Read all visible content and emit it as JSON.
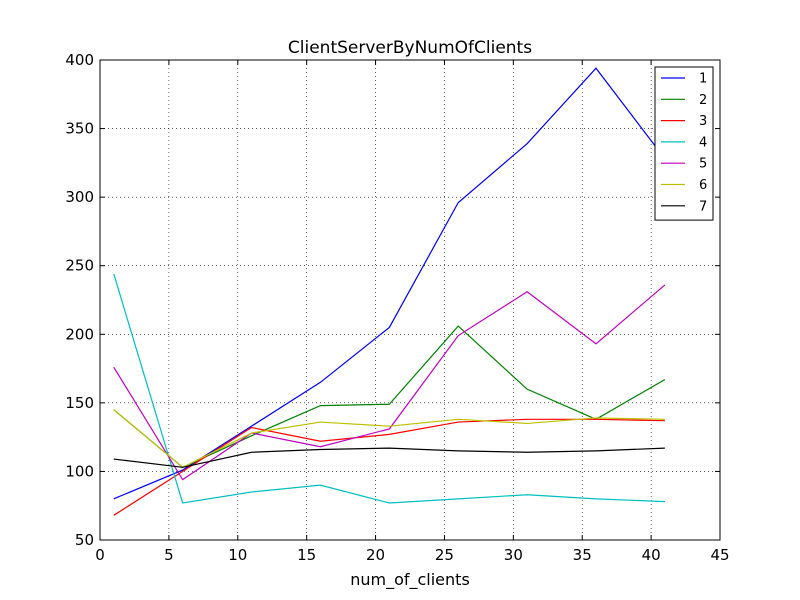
{
  "chart_data": {
    "type": "line",
    "title": "ClientServerByNumOfClients",
    "xlabel": "num_of_clients",
    "ylabel": "",
    "xlim": [
      0,
      45
    ],
    "ylim": [
      50,
      400
    ],
    "xticks": [
      0,
      5,
      10,
      15,
      20,
      25,
      30,
      35,
      40,
      45
    ],
    "yticks": [
      50,
      100,
      150,
      200,
      250,
      300,
      350,
      400
    ],
    "grid": true,
    "legend_position": "top-right",
    "x": [
      1,
      6,
      11,
      16,
      21,
      26,
      31,
      36,
      41
    ],
    "series": [
      {
        "name": "1",
        "color": "#0000ff",
        "values": [
          80,
          101,
          133,
          165,
          205,
          296,
          339,
          394,
          328
        ]
      },
      {
        "name": "2",
        "color": "#008000",
        "values": [
          145,
          103,
          126,
          148,
          149,
          206,
          160,
          138,
          167
        ]
      },
      {
        "name": "3",
        "color": "#ff0000",
        "values": [
          68,
          100,
          132,
          122,
          127,
          136,
          138,
          138,
          137
        ]
      },
      {
        "name": "4",
        "color": "#00bfbf",
        "values": [
          244,
          77,
          85,
          90,
          77,
          80,
          83,
          80,
          78
        ]
      },
      {
        "name": "5",
        "color": "#bf00bf",
        "values": [
          176,
          94,
          128,
          118,
          131,
          199,
          231,
          193,
          236
        ]
      },
      {
        "name": "6",
        "color": "#bfbf00",
        "values": [
          145,
          103,
          128,
          136,
          133,
          138,
          135,
          139,
          138
        ]
      },
      {
        "name": "7",
        "color": "#000000",
        "values": [
          109,
          103,
          114,
          116,
          117,
          115,
          114,
          115,
          117
        ]
      }
    ]
  }
}
